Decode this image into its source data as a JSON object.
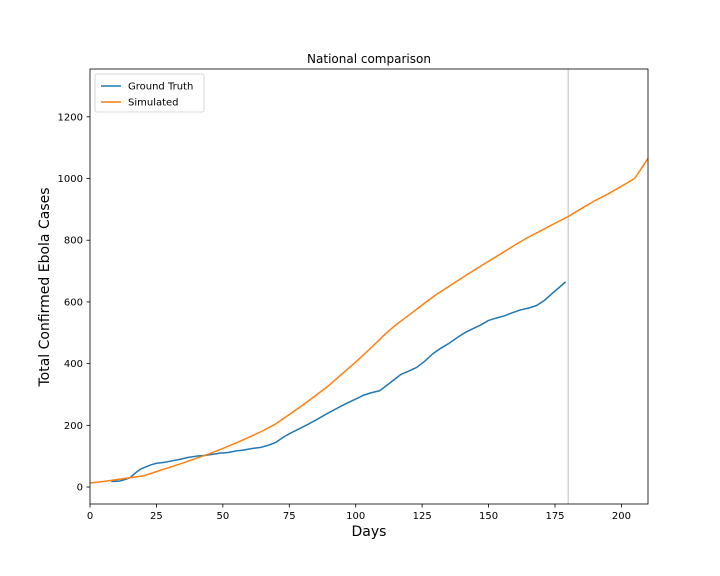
{
  "chart_data": {
    "type": "line",
    "title": "National comparison",
    "xlabel": "Days",
    "ylabel": "Total Confirmed Ebola Cases",
    "xlim": [
      0,
      210
    ],
    "ylim": [
      -55,
      1355
    ],
    "xticks": [
      0,
      25,
      50,
      75,
      100,
      125,
      150,
      175,
      200
    ],
    "yticks": [
      0,
      200,
      400,
      600,
      800,
      1000,
      1200
    ],
    "legend_position": "top-left",
    "grid": false,
    "reference_line": {
      "orientation": "vertical",
      "x": 180,
      "color": "#d3d3d3"
    },
    "series": [
      {
        "name": "Ground Truth",
        "color": "#1f77b4",
        "x": [
          8,
          11,
          13,
          15,
          17,
          19,
          21,
          23,
          25,
          28,
          31,
          34,
          37,
          40,
          43,
          46,
          49,
          52,
          55,
          58,
          61,
          64,
          67,
          70,
          73,
          76,
          79,
          82,
          85,
          88,
          91,
          94,
          97,
          100,
          103,
          106,
          109,
          111,
          114,
          117,
          120,
          123,
          126,
          129,
          132,
          135,
          138,
          141,
          144,
          147,
          150,
          153,
          156,
          159,
          162,
          165,
          168,
          171,
          174,
          177,
          179
        ],
        "y": [
          18,
          19,
          24,
          30,
          45,
          58,
          65,
          72,
          77,
          80,
          85,
          90,
          96,
          100,
          102,
          106,
          110,
          112,
          117,
          120,
          125,
          128,
          135,
          145,
          163,
          177,
          190,
          203,
          217,
          232,
          246,
          260,
          273,
          285,
          298,
          306,
          312,
          325,
          345,
          365,
          376,
          388,
          408,
          432,
          450,
          465,
          483,
          500,
          513,
          525,
          540,
          548,
          555,
          565,
          574,
          580,
          588,
          605,
          628,
          650,
          665
        ]
      },
      {
        "name": "Simulated",
        "color": "#ff7f0e",
        "x": [
          0,
          5,
          10,
          15,
          20,
          25,
          30,
          35,
          40,
          45,
          50,
          55,
          60,
          65,
          70,
          75,
          80,
          85,
          90,
          95,
          100,
          105,
          111,
          115,
          120,
          125,
          130,
          135,
          140,
          145,
          150,
          155,
          160,
          165,
          170,
          175,
          180,
          185,
          190,
          195,
          200,
          205,
          210
        ],
        "y": [
          13,
          18,
          24,
          30,
          36,
          50,
          64,
          78,
          93,
          108,
          125,
          143,
          162,
          182,
          205,
          235,
          265,
          297,
          330,
          368,
          405,
          445,
          495,
          525,
          557,
          590,
          622,
          650,
          678,
          705,
          732,
          758,
          785,
          810,
          832,
          855,
          877,
          903,
          928,
          950,
          975,
          1000,
          1065
        ]
      }
    ]
  }
}
